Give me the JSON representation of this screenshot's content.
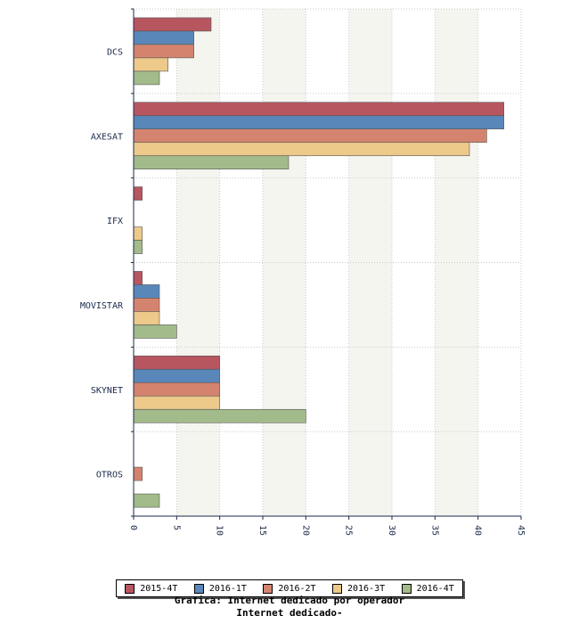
{
  "chart_data": {
    "type": "bar",
    "orientation": "horizontal",
    "title": "Grafica: Internet dedicado por operador",
    "subtitle": "Internet dedicado-",
    "categories": [
      "DCS",
      "AXESAT",
      "IFX",
      "MOVISTAR",
      "SKYNET",
      "OTROS"
    ],
    "series": [
      {
        "name": "2015-4T",
        "color": "#b85660",
        "values": [
          9,
          43,
          1,
          1,
          10,
          0
        ]
      },
      {
        "name": "2016-1T",
        "color": "#5a87ba",
        "values": [
          7,
          43,
          0,
          3,
          10,
          0
        ]
      },
      {
        "name": "2016-2T",
        "color": "#d4846e",
        "values": [
          7,
          41,
          0,
          3,
          10,
          1
        ]
      },
      {
        "name": "2016-3T",
        "color": "#edc98a",
        "values": [
          4,
          39,
          1,
          3,
          10,
          0
        ]
      },
      {
        "name": "2016-4T",
        "color": "#a3bb8a",
        "values": [
          3,
          18,
          1,
          5,
          20,
          3
        ]
      }
    ],
    "xlim": [
      0,
      45
    ],
    "xticks": [
      0,
      5,
      10,
      15,
      20,
      25,
      30,
      35,
      40,
      45
    ],
    "grid": true,
    "legend_position": "bottom"
  }
}
